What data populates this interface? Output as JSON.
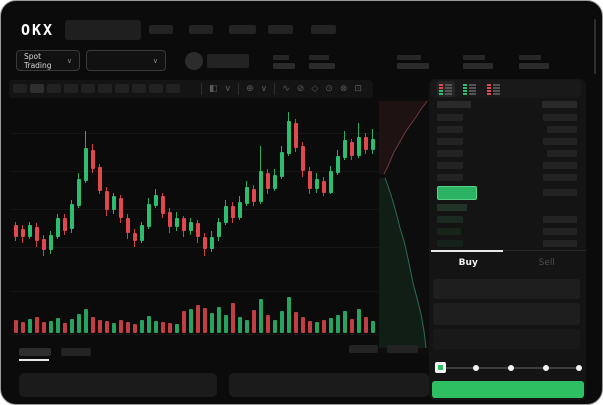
{
  "app": {
    "logo_text": "OKX"
  },
  "ticker": {
    "market_selector_label": "Spot Trading"
  },
  "icons": {
    "chevron": "∨",
    "chart_type": "◧",
    "indicators": "⊕",
    "line_tool": "∿",
    "brush_tool": "⊘",
    "measure_tool": "◇",
    "camera": "⊙",
    "settings": "⊗",
    "fullscreen": "⊡",
    "divider": "|"
  },
  "chart_data": {
    "type": "candlestick",
    "up_color": "#2ebd70",
    "down_color": "#e0484f",
    "price_scale": [
      0,
      100
    ],
    "candles": [
      [
        34,
        36,
        26,
        28
      ],
      [
        32,
        34,
        25,
        28
      ],
      [
        28,
        36,
        27,
        34
      ],
      [
        33,
        35,
        23,
        26
      ],
      [
        27,
        29,
        18,
        21
      ],
      [
        21,
        31,
        19,
        29
      ],
      [
        28,
        40,
        27,
        38
      ],
      [
        38,
        40,
        29,
        31
      ],
      [
        32,
        47,
        30,
        45
      ],
      [
        44,
        61,
        43,
        58
      ],
      [
        57,
        83,
        56,
        74
      ],
      [
        73,
        76,
        61,
        63
      ],
      [
        64,
        66,
        50,
        52
      ],
      [
        52,
        54,
        39,
        42
      ],
      [
        42,
        51,
        40,
        49
      ],
      [
        48,
        50,
        35,
        38
      ],
      [
        38,
        40,
        27,
        30
      ],
      [
        30,
        32,
        23,
        26
      ],
      [
        26,
        36,
        25,
        34
      ],
      [
        33,
        48,
        32,
        45
      ],
      [
        44,
        53,
        43,
        50
      ],
      [
        49,
        51,
        38,
        40
      ],
      [
        41,
        43,
        30,
        33
      ],
      [
        33,
        41,
        31,
        38
      ],
      [
        38,
        39,
        28,
        31
      ],
      [
        31,
        38,
        29,
        36
      ],
      [
        35,
        37,
        25,
        28
      ],
      [
        28,
        30,
        18,
        22
      ],
      [
        22,
        31,
        20,
        28
      ],
      [
        28,
        38,
        26,
        36
      ],
      [
        35,
        47,
        34,
        44
      ],
      [
        44,
        46,
        35,
        38
      ],
      [
        38,
        49,
        37,
        46
      ],
      [
        45,
        57,
        44,
        54
      ],
      [
        53,
        55,
        44,
        46
      ],
      [
        46,
        75,
        45,
        62
      ],
      [
        61,
        63,
        50,
        53
      ],
      [
        53,
        63,
        52,
        60
      ],
      [
        59,
        75,
        58,
        72
      ],
      [
        71,
        93,
        70,
        88
      ],
      [
        87,
        89,
        72,
        74
      ],
      [
        75,
        77,
        59,
        62
      ],
      [
        62,
        64,
        50,
        53
      ],
      [
        53,
        61,
        51,
        58
      ],
      [
        57,
        59,
        49,
        51
      ],
      [
        51,
        65,
        50,
        62
      ],
      [
        61,
        73,
        60,
        70
      ],
      [
        69,
        83,
        68,
        78
      ],
      [
        77,
        79,
        68,
        70
      ],
      [
        70,
        87,
        69,
        80
      ],
      [
        80,
        82,
        71,
        73
      ],
      [
        73,
        84,
        71,
        79
      ]
    ],
    "volumes": [
      13,
      11,
      14,
      16,
      11,
      12,
      15,
      10,
      14,
      19,
      24,
      16,
      13,
      12,
      10,
      13,
      11,
      9,
      13,
      17,
      12,
      11,
      10,
      9,
      22,
      24,
      28,
      25,
      20,
      26,
      18,
      30,
      16,
      13,
      23,
      34,
      18,
      13,
      22,
      36,
      21,
      16,
      12,
      11,
      13,
      15,
      18,
      22,
      14,
      24,
      16,
      12
    ]
  },
  "depth": {
    "ask_line_color": "#6e3a3e",
    "ask_fill_color": "rgba(196,70,76,0.10)",
    "bid_line_color": "#2e6b52",
    "bid_fill_color": "rgba(46,189,112,0.10)",
    "ask_line": [
      [
        5,
        76
      ],
      [
        9,
        68
      ],
      [
        12,
        61
      ],
      [
        15,
        54
      ],
      [
        19,
        47
      ],
      [
        23,
        40
      ],
      [
        27,
        33
      ],
      [
        32,
        26
      ],
      [
        37,
        19
      ],
      [
        42,
        11
      ],
      [
        46,
        6
      ],
      [
        48,
        3
      ]
    ],
    "bid_line": [
      [
        6,
        80
      ],
      [
        9,
        88
      ],
      [
        12,
        97
      ],
      [
        15,
        107
      ],
      [
        18,
        118
      ],
      [
        21,
        130
      ],
      [
        25,
        143
      ],
      [
        28,
        156
      ],
      [
        31,
        170
      ],
      [
        34,
        185
      ],
      [
        38,
        200
      ],
      [
        42,
        216
      ],
      [
        45,
        233
      ],
      [
        47,
        250
      ]
    ]
  },
  "order_book": {
    "view_icons": [
      {
        "name": "book-view-combined",
        "rows": [
          "r",
          "r",
          "g",
          "g"
        ],
        "active": true
      },
      {
        "name": "book-view-buys",
        "rows": [
          "g",
          "g",
          "g",
          "g"
        ],
        "active": false
      },
      {
        "name": "book-view-sells",
        "rows": [
          "r",
          "r",
          "r",
          "r"
        ],
        "active": false
      }
    ],
    "icon_red": "#e0484f",
    "icon_green": "#2ebd70",
    "header": {
      "left_w": 34,
      "right_w": 35
    },
    "asks": [
      {
        "l": 26,
        "r": 34
      },
      {
        "l": 26,
        "r": 30
      },
      {
        "l": 26,
        "r": 34
      },
      {
        "l": 26,
        "r": 30
      },
      {
        "l": 26,
        "r": 34
      },
      {
        "l": 26,
        "r": 34
      }
    ],
    "last_price": {
      "fill": "#2bb263",
      "border": "#56d388",
      "right_w": 34
    },
    "bids": [
      {
        "l": 30,
        "r": 0,
        "lc": "#223428"
      },
      {
        "l": 26,
        "r": 34,
        "lc": "#1a2a20"
      },
      {
        "l": 24,
        "r": 34,
        "lc": "#172519"
      },
      {
        "l": 26,
        "r": 34,
        "lc": "#15221b"
      }
    ]
  },
  "trade_panel": {
    "buy_label": "Buy",
    "sell_label": "Sell",
    "submit_color": "#2fbf63",
    "slider_stop_count": 5
  }
}
